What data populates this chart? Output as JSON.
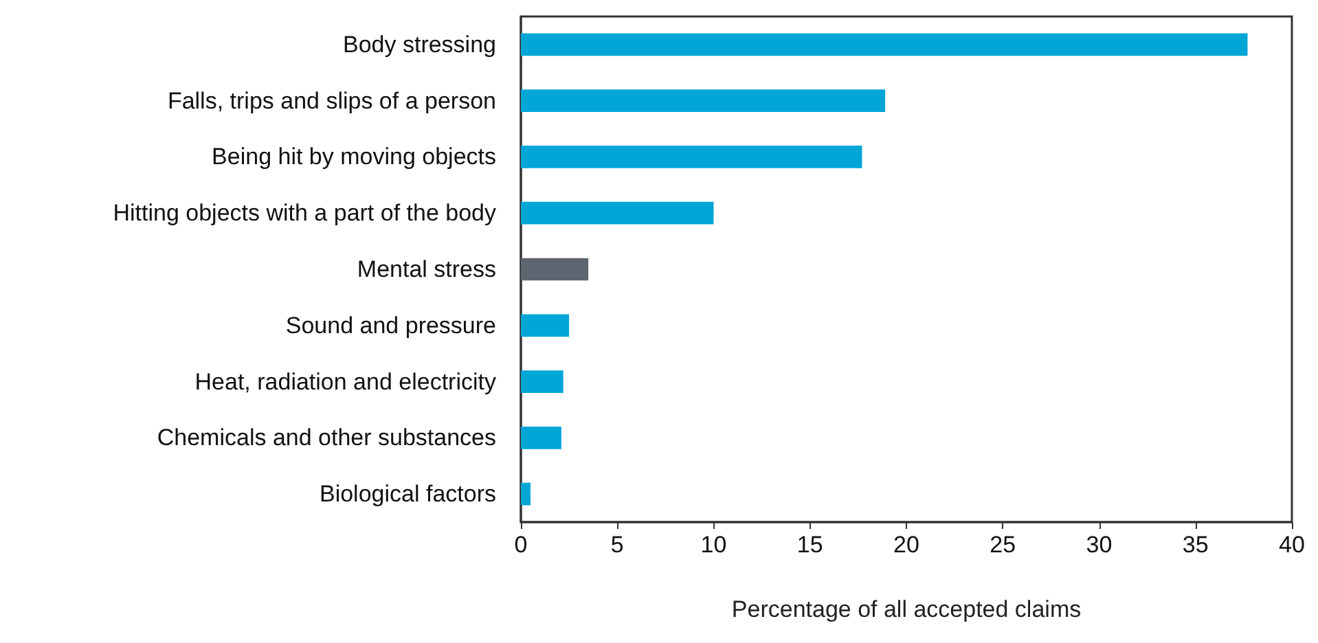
{
  "chart_data": {
    "type": "bar",
    "orientation": "horizontal",
    "xlabel": "Percentage of all accepted claims",
    "categories": [
      "Body stressing",
      "Falls, trips and slips of a person",
      "Being hit by moving objects",
      "Hitting objects with a part of the body",
      "Mental stress",
      "Sound and pressure",
      "Heat, radiation and electricity",
      "Chemicals and other substances",
      "Biological factors"
    ],
    "values": [
      37.7,
      18.9,
      17.7,
      10.0,
      3.5,
      2.5,
      2.2,
      2.1,
      0.5
    ],
    "colors": [
      "#00a6d6",
      "#00a6d6",
      "#00a6d6",
      "#00a6d6",
      "#5e6470",
      "#00a6d6",
      "#00a6d6",
      "#00a6d6",
      "#00a6d6"
    ],
    "xlim": [
      0,
      40
    ],
    "xticks": [
      0,
      5,
      10,
      15,
      20,
      25,
      30,
      35,
      40
    ],
    "grid": false
  }
}
